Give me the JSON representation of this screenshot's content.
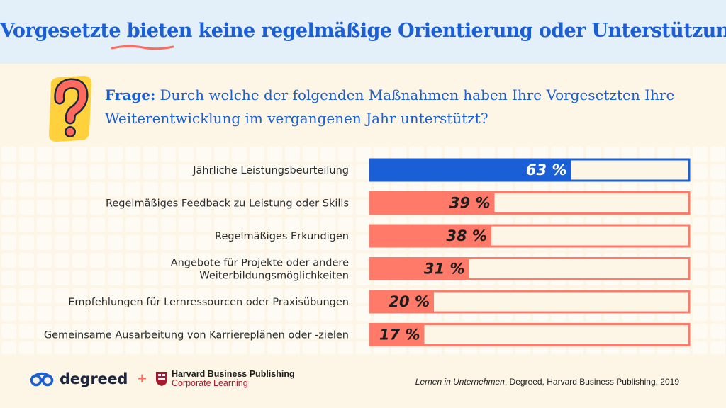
{
  "title": "Vorgesetzte bieten keine regelmäßige Orientierung oder Unterstützung",
  "question": {
    "prefix": "Frage:",
    "text": "Durch welche der folgenden Maßnahmen haben Ihre Vorgesetzten Ihre Weiterentwicklung im vergangenen Jahr unterstützt?"
  },
  "colors": {
    "header_bg": "#e3f0fa",
    "page_bg": "#fdf6e6",
    "title_blue": "#1a5fd6",
    "highlight_bar": "#1a5fd6",
    "bar": "#ff7a68",
    "track": "#fdf6e6"
  },
  "chart_data": {
    "type": "bar",
    "orientation": "horizontal",
    "categories": [
      "Jährliche Leistungsbeurteilung",
      "Regelmäßiges Feedback zu Leistung oder Skills",
      "Regelmäßiges Erkundigen",
      "Angebote für Projekte oder andere Weiterbildungsmöglichkeiten",
      "Empfehlungen für Lernressourcen oder Praxisübungen",
      "Gemeinsame Ausarbeitung von Karriereplänen oder -zielen"
    ],
    "label_lines": [
      [
        "Jährliche Leistungsbeurteilung"
      ],
      [
        "Regelmäßiges Feedback zu Leistung oder Skills"
      ],
      [
        "Regelmäßiges Erkundigen"
      ],
      [
        "Angebote für Projekte oder andere",
        "Weiterbildungsmöglichkeiten"
      ],
      [
        "Empfehlungen für Lernressourcen oder Praxisübungen"
      ],
      [
        "Gemeinsame Ausarbeitung von Karriereplänen oder -zielen"
      ]
    ],
    "values": [
      63,
      39,
      38,
      31,
      20,
      17
    ],
    "value_labels": [
      "63 %",
      "39 %",
      "38 %",
      "31 %",
      "20 %",
      "17 %"
    ],
    "xlim": [
      0,
      100
    ],
    "highlight_index": 0
  },
  "footer": {
    "degreed": "degreed",
    "plus": "+",
    "hbp_line1": "Harvard Business Publishing",
    "hbp_line2": "Corporate Learning",
    "source_italic": "Lernen in Unternehmen",
    "source_rest": ", Degreed, Harvard Business Publishing, 2019"
  }
}
